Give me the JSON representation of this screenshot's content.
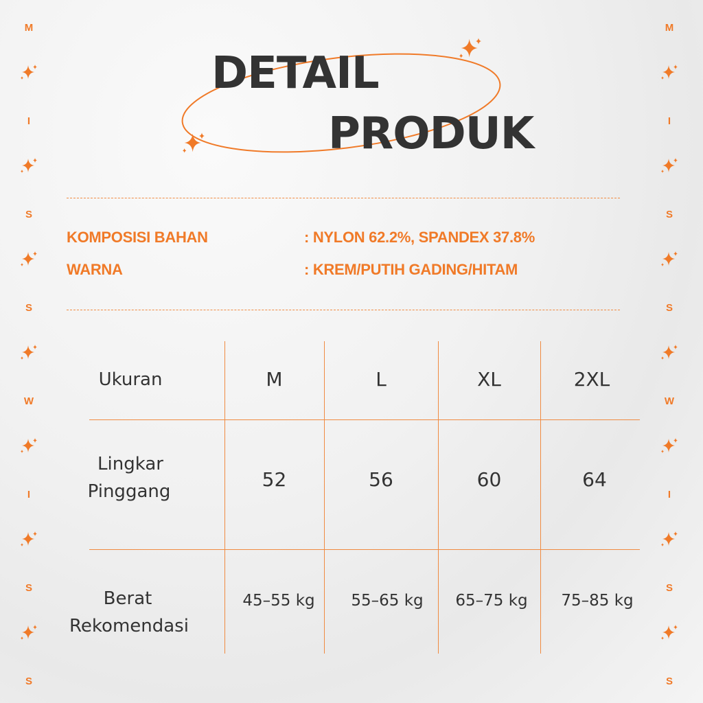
{
  "side_text": [
    "M",
    "I",
    "S",
    "S",
    "W",
    "I",
    "S",
    "S"
  ],
  "colors": {
    "accent": "#f07a28",
    "text": "#333333"
  },
  "icons": {
    "sparkle": "sparkle-icon"
  },
  "title": {
    "line1": "DETAIL",
    "line2": "PRODUK"
  },
  "info": [
    {
      "label": "KOMPOSISI BAHAN",
      "value": ": NYLON 62.2%, SPANDEX 37.8%"
    },
    {
      "label": "WARNA",
      "value": ": KREM/PUTIH GADING/HITAM"
    }
  ],
  "table": {
    "header_label": "Ukuran",
    "sizes": [
      "M",
      "L",
      "XL",
      "2XL"
    ],
    "rows": [
      {
        "label1": "Lingkar",
        "label2": "Pinggang",
        "values": [
          "52",
          "56",
          "60",
          "64"
        ]
      },
      {
        "label1": "Berat",
        "label2": "Rekomendasi",
        "values": [
          "45–55 kg",
          "55–65 kg",
          "65–75 kg",
          "75–85 kg"
        ]
      }
    ]
  }
}
